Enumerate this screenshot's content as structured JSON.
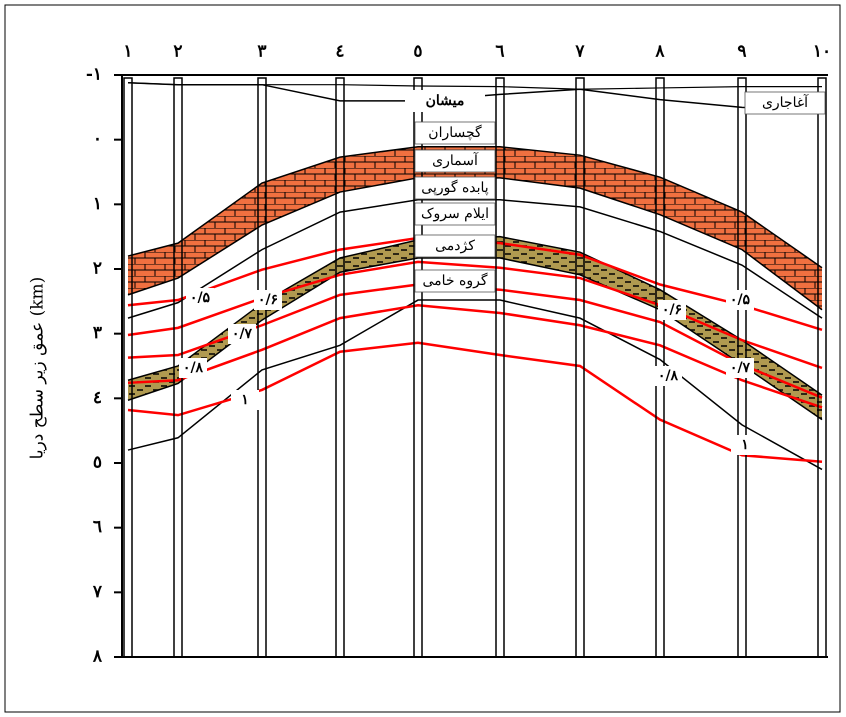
{
  "chart_data": {
    "type": "line",
    "categories": [
      "۱",
      "۲",
      "۳",
      "٤",
      "٥",
      "٦",
      "۷",
      "۸",
      "۹",
      "۱۰"
    ],
    "ylabel": "عمق زیر سطح دریا (km)",
    "ylim": [
      -1,
      8
    ],
    "yticks": [
      {
        "value": -1,
        "label": "-۱"
      },
      {
        "value": 0,
        "label": "۰"
      },
      {
        "value": 1,
        "label": "۱"
      },
      {
        "value": 2,
        "label": "۲"
      },
      {
        "value": 3,
        "label": "۳"
      },
      {
        "value": 4,
        "label": "٤"
      },
      {
        "value": 5,
        "label": "٥"
      },
      {
        "value": 6,
        "label": "٦"
      },
      {
        "value": 7,
        "label": "۷"
      },
      {
        "value": 8,
        "label": "۸"
      }
    ],
    "formations": [
      "میشان",
      "گچساران",
      "آسماری",
      "پابده گورپی",
      "ایلام سروک",
      "کژدمی",
      "گروه خامی",
      "آغاجاری"
    ],
    "boundaries": [
      {
        "color": "#000000",
        "values": [
          -0.88,
          -0.85,
          -0.85,
          -0.85,
          -0.83,
          -0.82,
          -0.78,
          -0.8,
          -0.82,
          -0.82
        ]
      },
      {
        "color": "#000000",
        "values": [
          -0.88,
          -0.85,
          -0.85,
          -0.6,
          -0.6,
          -0.7,
          -0.78,
          -0.62,
          -0.5,
          -0.45
        ]
      },
      {
        "color": "#000000",
        "values": [
          1.8,
          1.6,
          0.67,
          0.27,
          0.11,
          0.11,
          0.24,
          0.58,
          1.12,
          1.98
        ]
      },
      {
        "color": "#000000",
        "values": [
          2.4,
          2.14,
          1.32,
          0.81,
          0.59,
          0.59,
          0.75,
          1.16,
          1.7,
          2.63
        ]
      },
      {
        "color": "#000000",
        "values": [
          2.76,
          2.52,
          1.7,
          1.12,
          0.93,
          0.93,
          1.04,
          1.42,
          1.94,
          2.76
        ]
      },
      {
        "color": "#000000",
        "values": [
          3.72,
          3.5,
          2.53,
          1.83,
          1.55,
          1.5,
          1.74,
          2.32,
          3.1,
          3.95
        ]
      },
      {
        "color": "#000000",
        "values": [
          4.03,
          3.77,
          2.79,
          2.05,
          1.83,
          1.83,
          2.09,
          2.63,
          3.48,
          4.33
        ]
      },
      {
        "color": "#000000",
        "values": [
          4.8,
          4.61,
          3.56,
          3.18,
          2.48,
          2.48,
          2.76,
          3.4,
          4.41,
          5.1
        ]
      }
    ],
    "series": [
      {
        "name": "۰/۵",
        "color": "#ff0000",
        "values": [
          2.56,
          2.48,
          2.01,
          1.7,
          1.52,
          1.6,
          1.78,
          2.24,
          2.56,
          2.94
        ]
      },
      {
        "name": "۰/۶",
        "color": "#ff0000",
        "values": [
          3.02,
          2.91,
          2.45,
          2.09,
          1.89,
          1.98,
          2.14,
          2.56,
          3.1,
          3.53
        ]
      },
      {
        "name": "۰/۷",
        "color": "#ff0000",
        "values": [
          3.37,
          3.33,
          2.87,
          2.4,
          2.24,
          2.32,
          2.48,
          2.82,
          3.48,
          3.99
        ]
      },
      {
        "name": "۰/۸",
        "color": "#ff0000",
        "values": [
          3.76,
          3.72,
          3.25,
          2.76,
          2.56,
          2.68,
          2.87,
          3.18,
          3.72,
          4.14
        ]
      },
      {
        "name": "۱",
        "color": "#ff0000",
        "values": [
          4.18,
          4.26,
          3.87,
          3.28,
          3.14,
          3.33,
          3.5,
          4.33,
          4.88,
          4.98
        ]
      }
    ]
  }
}
